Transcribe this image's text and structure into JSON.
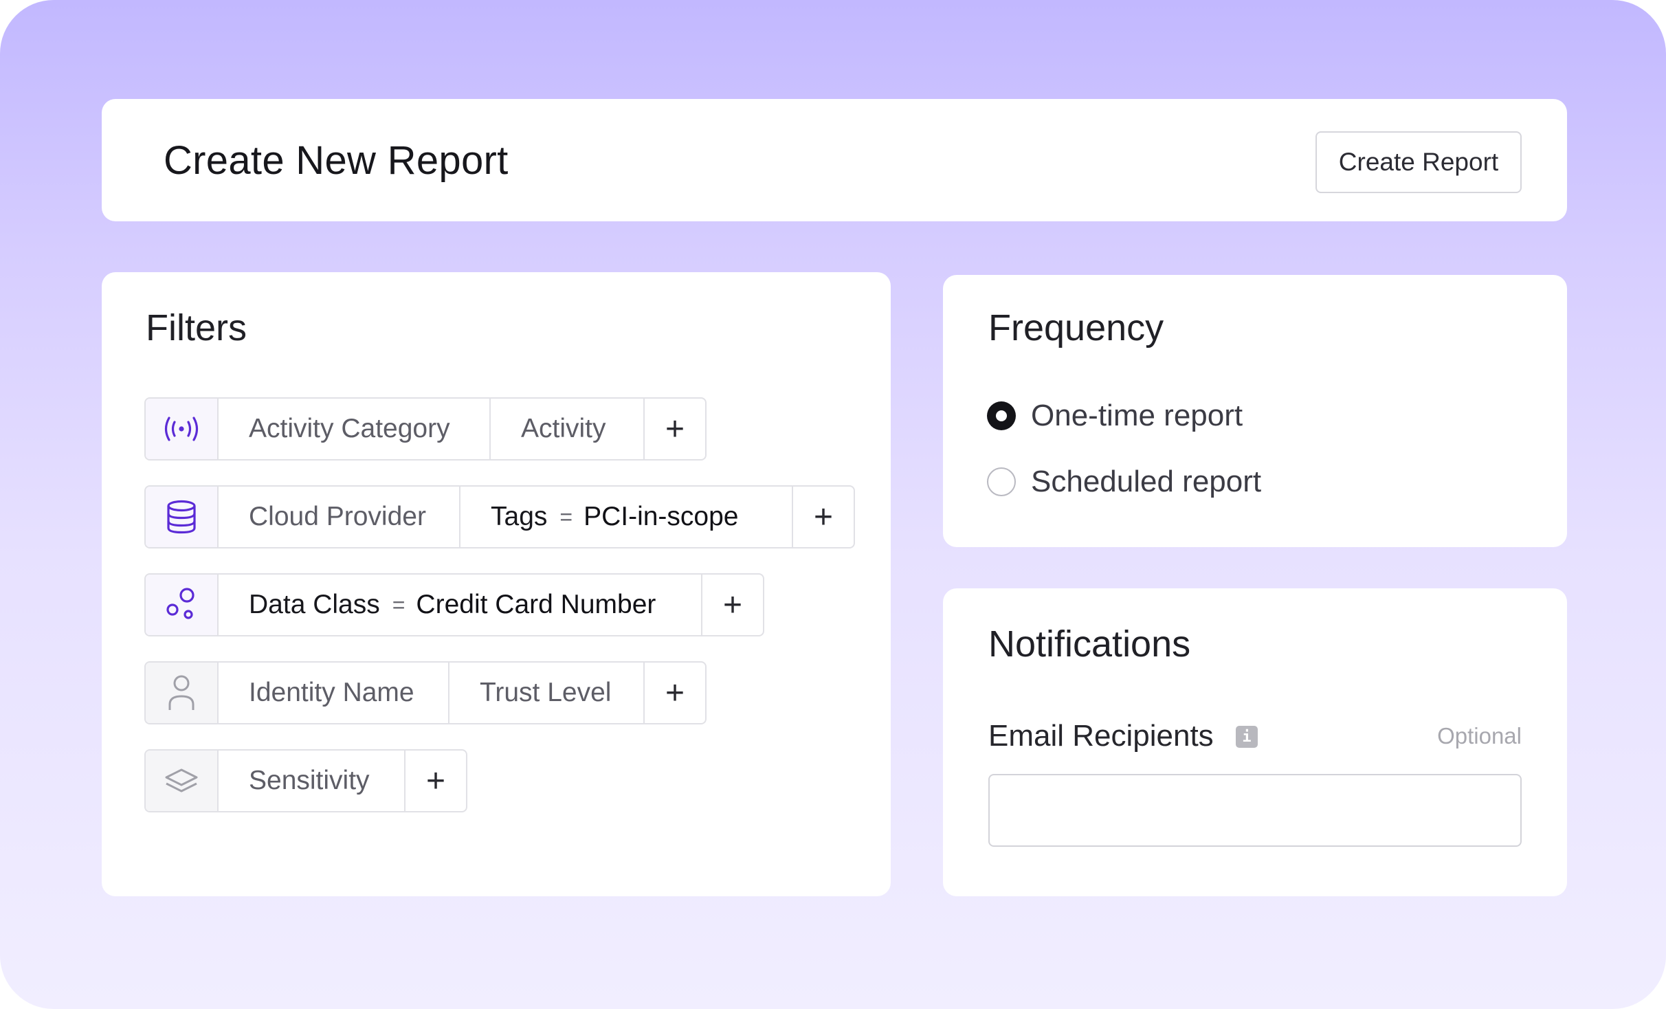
{
  "header": {
    "title": "Create New Report",
    "create_button_label": "Create Report"
  },
  "filters": {
    "title": "Filters",
    "rows": [
      {
        "icon": "broadcast-icon",
        "chips": [
          {
            "label": "Activity Category"
          },
          {
            "label": "Activity"
          }
        ]
      },
      {
        "icon": "database-icon",
        "chips": [
          {
            "label": "Cloud Provider"
          },
          {
            "key": "Tags",
            "operator": "=",
            "value": "PCI-in-scope"
          }
        ]
      },
      {
        "icon": "data-class-bubbles-icon",
        "chips": [
          {
            "key": "Data Class",
            "operator": "=",
            "value": "Credit Card Number"
          }
        ]
      },
      {
        "icon": "user-icon",
        "chips": [
          {
            "label": "Identity Name"
          },
          {
            "label": "Trust Level"
          }
        ]
      },
      {
        "icon": "layers-icon",
        "chips": [
          {
            "label": "Sensitivity"
          }
        ]
      }
    ],
    "add_symbol": "+"
  },
  "frequency": {
    "title": "Frequency",
    "options": [
      {
        "label": "One-time report",
        "selected": true
      },
      {
        "label": "Scheduled report",
        "selected": false
      }
    ]
  },
  "notifications": {
    "title": "Notifications",
    "email_label": "Email Recipients",
    "info_glyph": "i",
    "optional_text": "Optional",
    "email_value": ""
  },
  "colors": {
    "accent_purple": "#5b2bd6",
    "icon_gray": "#a0a0a8",
    "background_top": "#c2b8ff",
    "background_bottom": "#f1eeff"
  }
}
